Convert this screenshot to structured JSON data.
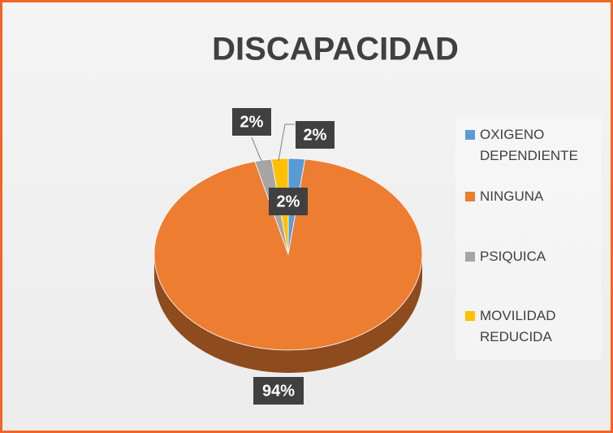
{
  "chart_data": {
    "type": "pie",
    "title": "DISCAPACIDAD",
    "categories": [
      "OXIGENO DEPENDIENTE",
      "NINGUNA",
      "PSIQUICA",
      "MOVILIDAD REDUCIDA"
    ],
    "values": [
      2,
      94,
      2,
      2
    ],
    "value_labels": [
      "2%",
      "94%",
      "2%",
      "2%"
    ],
    "colors": [
      "#5b9bd5",
      "#ed7d31",
      "#a5a5a5",
      "#ffc000"
    ],
    "legend": "right",
    "3d": true
  }
}
